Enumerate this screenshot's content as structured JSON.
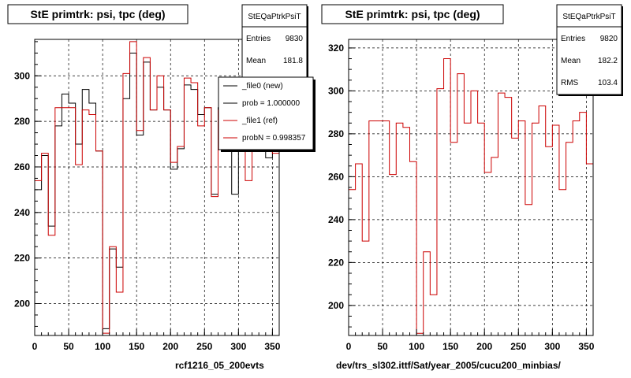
{
  "chart_data": [
    {
      "type": "histogram",
      "title": "StE primtrk: psi, tpc (deg)",
      "xlim": [
        0,
        360
      ],
      "ylim": [
        186,
        316
      ],
      "x_ticks": [
        0,
        50,
        100,
        150,
        200,
        250,
        300,
        350
      ],
      "y_ticks": [
        200,
        220,
        240,
        260,
        280,
        300
      ],
      "grid": true,
      "bin_width": 10,
      "series": [
        {
          "name": "_file0 (new)",
          "color": "#000000",
          "values": [
            250,
            265,
            234,
            278,
            292,
            288,
            270,
            294,
            288,
            267,
            189,
            224,
            216,
            290,
            310,
            274,
            306,
            285,
            295,
            285,
            259,
            268,
            296,
            294,
            283,
            286,
            248,
            286,
            294,
            248,
            272,
            268,
            268,
            292,
            264,
            272
          ]
        },
        {
          "name": "_file1 (ref)",
          "color": "#cc0000",
          "values": [
            254,
            266,
            230,
            286,
            286,
            286,
            261,
            285,
            283,
            267,
            187,
            225,
            205,
            301,
            315,
            276,
            308,
            285,
            300,
            285,
            262,
            269,
            299,
            297,
            278,
            286,
            247,
            285,
            293,
            274,
            284,
            254,
            276,
            286,
            290,
            266
          ]
        }
      ],
      "stats": {
        "name": "StEQaPtrkPsiT",
        "entries_label": "Entries",
        "entries": "9830",
        "mean_label": "Mean",
        "mean": "181.8"
      },
      "legend": {
        "placement": "top-right",
        "entries": [
          {
            "label": "_file0 (new)",
            "color": "#000000"
          },
          {
            "label": "prob = 1.000000",
            "color": "#000000"
          },
          {
            "label": "_file1 (ref)",
            "color": "#cc0000"
          },
          {
            "label": "probN = 0.998357",
            "color": "#cc0000"
          }
        ]
      },
      "footer": "rcf1216_05_200evts"
    },
    {
      "type": "histogram",
      "title": "StE primtrk: psi, tpc (deg)",
      "xlim": [
        0,
        360
      ],
      "ylim": [
        186,
        324
      ],
      "x_ticks": [
        0,
        50,
        100,
        150,
        200,
        250,
        300,
        350
      ],
      "y_ticks": [
        200,
        220,
        240,
        260,
        280,
        300,
        320
      ],
      "grid": true,
      "bin_width": 10,
      "series": [
        {
          "name": "",
          "color": "#cc0000",
          "values": [
            254,
            266,
            230,
            286,
            286,
            286,
            261,
            285,
            283,
            267,
            187,
            225,
            205,
            301,
            315,
            276,
            308,
            285,
            300,
            285,
            262,
            269,
            299,
            297,
            278,
            286,
            247,
            285,
            293,
            274,
            284,
            254,
            276,
            286,
            290,
            266
          ]
        }
      ],
      "stats": {
        "name": "StEQaPtrkPsiT",
        "entries_label": "Entries",
        "entries": "9820",
        "mean_label": "Mean",
        "mean": "182.2",
        "rms_label": "RMS",
        "rms": "103.4"
      },
      "footer": "dev/trs_sl302.ittf/Sat/year_2005/cucu200_minbias/"
    }
  ]
}
